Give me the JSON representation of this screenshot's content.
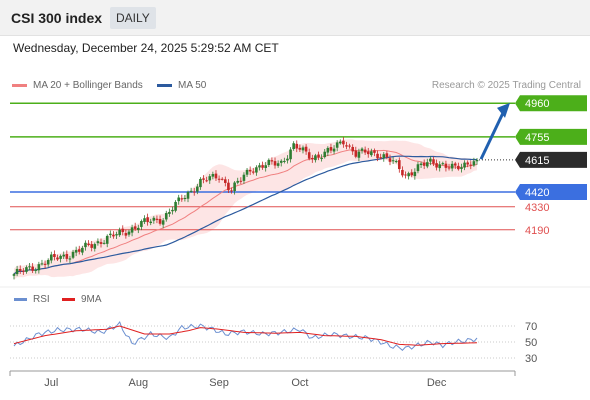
{
  "header": {
    "title": "CSI 300 index",
    "timeframe": "DAILY"
  },
  "date": "Wednesday, December 24, 2025 5:29:52 AM CET",
  "credit": "Research © 2025 Trading Central",
  "legend": {
    "ma20_label": "MA 20 + Bollinger Bands",
    "ma50_label": "MA 50"
  },
  "rsi_legend": {
    "rsi_label": "RSI",
    "ma_label": "9MA"
  },
  "colors": {
    "ma20": "#f08080",
    "ma50": "#2c5a9e",
    "bands": "#fde0e0",
    "up": "#2e7d32",
    "down": "#c62828",
    "resistance": "#4caf1a",
    "support": "#3b6fe0",
    "support_minor": "#e05050",
    "current": "#2b2b2b",
    "arrow": "#2060b0",
    "rsi": "#6b8fd0",
    "rsi_ma": "#e02020"
  },
  "chart_data": {
    "type": "candlestick",
    "instrument": "CSI 300 index",
    "timeframe": "DAILY",
    "x_labels": [
      "Jul",
      "Aug",
      "Sep",
      "Oct",
      "Dec"
    ],
    "price_range": [
      3860,
      5010
    ],
    "levels": [
      {
        "value": 4960,
        "label": "4960",
        "kind": "resistance"
      },
      {
        "value": 4755,
        "label": "4755",
        "kind": "resistance"
      },
      {
        "value": 4615,
        "label": "4615",
        "kind": "current"
      },
      {
        "value": 4420,
        "label": "4420",
        "kind": "support"
      },
      {
        "value": 4330,
        "label": "4330",
        "kind": "support_minor"
      },
      {
        "value": 4190,
        "label": "4190",
        "kind": "support_minor"
      }
    ],
    "close_anchors": [
      [
        0,
        3920
      ],
      [
        6,
        3960
      ],
      [
        12,
        4010
      ],
      [
        18,
        4040
      ],
      [
        24,
        4090
      ],
      [
        30,
        4140
      ],
      [
        36,
        4180
      ],
      [
        42,
        4235
      ],
      [
        48,
        4260
      ],
      [
        54,
        4380
      ],
      [
        60,
        4480
      ],
      [
        66,
        4520
      ],
      [
        70,
        4430
      ],
      [
        76,
        4560
      ],
      [
        80,
        4580
      ],
      [
        86,
        4600
      ],
      [
        90,
        4700
      ],
      [
        96,
        4630
      ],
      [
        102,
        4670
      ],
      [
        106,
        4735
      ],
      [
        110,
        4650
      ],
      [
        114,
        4660
      ],
      [
        118,
        4650
      ],
      [
        122,
        4600
      ],
      [
        126,
        4520
      ],
      [
        130,
        4570
      ],
      [
        134,
        4600
      ],
      [
        138,
        4590
      ],
      [
        142,
        4560
      ],
      [
        144,
        4570
      ],
      [
        147,
        4610
      ],
      [
        149,
        4615
      ]
    ],
    "forecast_target": 4960,
    "rsi": {
      "levels": [
        70,
        50,
        30
      ],
      "rsi_anchors": [
        [
          0,
          45
        ],
        [
          8,
          60
        ],
        [
          14,
          65
        ],
        [
          22,
          66
        ],
        [
          28,
          62
        ],
        [
          34,
          72
        ],
        [
          38,
          48
        ],
        [
          44,
          60
        ],
        [
          50,
          55
        ],
        [
          54,
          68
        ],
        [
          60,
          70
        ],
        [
          64,
          66
        ],
        [
          68,
          60
        ],
        [
          74,
          63
        ],
        [
          80,
          60
        ],
        [
          86,
          62
        ],
        [
          92,
          66
        ],
        [
          96,
          55
        ],
        [
          102,
          60
        ],
        [
          108,
          57
        ],
        [
          114,
          55
        ],
        [
          118,
          50
        ],
        [
          122,
          44
        ],
        [
          126,
          42
        ],
        [
          130,
          46
        ],
        [
          134,
          50
        ],
        [
          138,
          46
        ],
        [
          142,
          50
        ],
        [
          146,
          52
        ],
        [
          149,
          54
        ]
      ],
      "ma_anchors": [
        [
          0,
          48
        ],
        [
          10,
          58
        ],
        [
          20,
          64
        ],
        [
          30,
          66
        ],
        [
          34,
          70
        ],
        [
          42,
          60
        ],
        [
          50,
          60
        ],
        [
          56,
          64
        ],
        [
          60,
          68
        ],
        [
          66,
          66
        ],
        [
          74,
          62
        ],
        [
          84,
          61
        ],
        [
          92,
          62
        ],
        [
          100,
          58
        ],
        [
          110,
          57
        ],
        [
          118,
          53
        ],
        [
          124,
          47
        ],
        [
          130,
          46
        ],
        [
          138,
          48
        ],
        [
          149,
          49
        ]
      ]
    }
  }
}
